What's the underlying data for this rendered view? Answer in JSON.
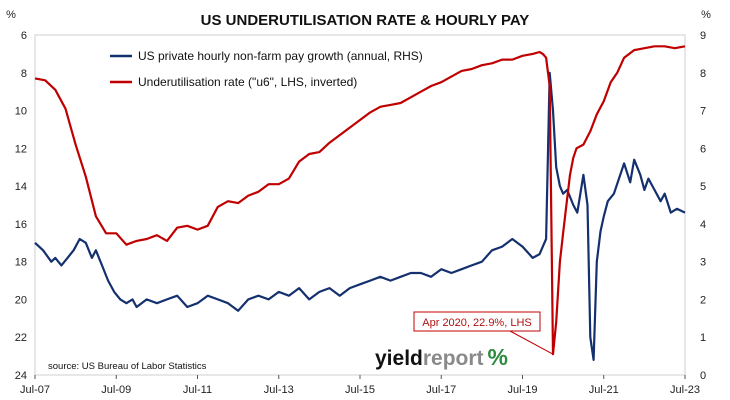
{
  "chart_data": {
    "type": "line",
    "title": "US UNDERUTILISATION RATE & HOURLY PAY",
    "left_axis": {
      "unit": "%",
      "inverted": true,
      "ylim": [
        6,
        24
      ],
      "ticks": [
        6,
        8,
        10,
        12,
        14,
        16,
        18,
        20,
        22,
        24
      ]
    },
    "right_axis": {
      "unit": "%",
      "ylim": [
        0,
        9
      ],
      "ticks": [
        0,
        1,
        2,
        3,
        4,
        5,
        6,
        7,
        8,
        9
      ]
    },
    "x_ticks": [
      {
        "label": "Jul-07",
        "x": 2007.5
      },
      {
        "label": "Jul-09",
        "x": 2009.5
      },
      {
        "label": "Jul-11",
        "x": 2011.5
      },
      {
        "label": "Jul-13",
        "x": 2013.5
      },
      {
        "label": "Jul-15",
        "x": 2015.5
      },
      {
        "label": "Jul-17",
        "x": 2017.5
      },
      {
        "label": "Jul-19",
        "x": 2019.5
      },
      {
        "label": "Jul-21",
        "x": 2021.5
      },
      {
        "label": "Jul-23",
        "x": 2023.5
      }
    ],
    "xlim": [
      2007.5,
      2023.5
    ],
    "grid": false,
    "legend_position": "top-left",
    "series": [
      {
        "name": "US private hourly non-farm pay growth (annual, RHS)",
        "axis": "right",
        "color": "#14306e",
        "x": [
          2007.5,
          2007.7,
          2007.9,
          2008.0,
          2008.15,
          2008.3,
          2008.45,
          2008.6,
          2008.75,
          2008.9,
          2009.0,
          2009.15,
          2009.3,
          2009.45,
          2009.6,
          2009.75,
          2009.9,
          2010.0,
          2010.25,
          2010.5,
          2010.75,
          2011.0,
          2011.25,
          2011.5,
          2011.75,
          2012.0,
          2012.25,
          2012.5,
          2012.75,
          2013.0,
          2013.25,
          2013.5,
          2013.75,
          2014.0,
          2014.25,
          2014.5,
          2014.75,
          2015.0,
          2015.25,
          2015.5,
          2015.75,
          2016.0,
          2016.25,
          2016.5,
          2016.75,
          2017.0,
          2017.25,
          2017.5,
          2017.75,
          2018.0,
          2018.25,
          2018.5,
          2018.75,
          2019.0,
          2019.25,
          2019.5,
          2019.75,
          2019.92,
          2020.0,
          2020.08,
          2020.17,
          2020.25,
          2020.33,
          2020.42,
          2020.5,
          2020.6,
          2020.75,
          2020.85,
          2021.0,
          2021.1,
          2021.17,
          2021.25,
          2021.33,
          2021.42,
          2021.5,
          2021.6,
          2021.75,
          2022.0,
          2022.15,
          2022.25,
          2022.4,
          2022.5,
          2022.6,
          2022.75,
          2022.9,
          2023.0,
          2023.15,
          2023.3,
          2023.5
        ],
        "values": [
          3.5,
          3.3,
          3.0,
          3.1,
          2.9,
          3.1,
          3.3,
          3.6,
          3.5,
          3.1,
          3.3,
          2.9,
          2.5,
          2.2,
          2.0,
          1.9,
          2.0,
          1.8,
          2.0,
          1.9,
          2.0,
          2.1,
          1.8,
          1.9,
          2.1,
          2.0,
          1.9,
          1.7,
          2.0,
          2.1,
          2.0,
          2.2,
          2.1,
          2.3,
          2.0,
          2.2,
          2.3,
          2.1,
          2.3,
          2.4,
          2.5,
          2.6,
          2.5,
          2.6,
          2.7,
          2.7,
          2.6,
          2.8,
          2.7,
          2.8,
          2.9,
          3.0,
          3.3,
          3.4,
          3.6,
          3.4,
          3.1,
          3.2,
          3.4,
          3.6,
          8.0,
          7.0,
          5.5,
          5.0,
          4.8,
          4.9,
          4.5,
          4.3,
          5.3,
          4.5,
          1.0,
          0.4,
          3.0,
          3.8,
          4.2,
          4.6,
          4.8,
          5.6,
          5.1,
          5.7,
          5.3,
          4.9,
          5.2,
          4.9,
          4.6,
          4.8,
          4.3,
          4.4,
          4.3
        ]
      },
      {
        "name": "Underutilisation rate (\"u6\", LHS, inverted)",
        "axis": "left",
        "color": "#c00000",
        "x": [
          2007.5,
          2007.75,
          2008.0,
          2008.25,
          2008.5,
          2008.75,
          2009.0,
          2009.25,
          2009.5,
          2009.75,
          2010.0,
          2010.25,
          2010.5,
          2010.75,
          2011.0,
          2011.25,
          2011.5,
          2011.75,
          2012.0,
          2012.25,
          2012.5,
          2012.75,
          2013.0,
          2013.25,
          2013.5,
          2013.75,
          2014.0,
          2014.25,
          2014.5,
          2014.75,
          2015.0,
          2015.25,
          2015.5,
          2015.75,
          2016.0,
          2016.25,
          2016.5,
          2016.75,
          2017.0,
          2017.25,
          2017.5,
          2017.75,
          2018.0,
          2018.25,
          2018.5,
          2018.75,
          2019.0,
          2019.25,
          2019.5,
          2019.75,
          2019.92,
          2020.0,
          2020.08,
          2020.17,
          2020.25,
          2020.33,
          2020.42,
          2020.5,
          2020.58,
          2020.67,
          2020.75,
          2020.83,
          2021.0,
          2021.17,
          2021.33,
          2021.5,
          2021.67,
          2021.83,
          2022.0,
          2022.25,
          2022.5,
          2022.75,
          2023.0,
          2023.25,
          2023.5
        ],
        "values": [
          8.3,
          8.4,
          8.9,
          9.9,
          11.8,
          13.5,
          15.6,
          16.5,
          16.5,
          17.1,
          16.9,
          16.8,
          16.6,
          16.9,
          16.2,
          16.1,
          16.3,
          16.1,
          15.1,
          14.8,
          14.9,
          14.5,
          14.3,
          13.9,
          13.9,
          13.6,
          12.7,
          12.3,
          12.2,
          11.7,
          11.3,
          10.9,
          10.5,
          10.1,
          9.8,
          9.7,
          9.6,
          9.3,
          9.0,
          8.7,
          8.5,
          8.2,
          7.9,
          7.8,
          7.6,
          7.5,
          7.3,
          7.3,
          7.1,
          7.0,
          6.9,
          7.0,
          7.2,
          8.7,
          22.9,
          21.2,
          18.0,
          16.5,
          15.0,
          13.4,
          12.5,
          12.0,
          11.8,
          11.1,
          10.2,
          9.5,
          8.5,
          8.0,
          7.2,
          6.8,
          6.7,
          6.6,
          6.6,
          6.7,
          6.6
        ]
      }
    ],
    "annotation": {
      "text": "Apr 2020, 22.9%, LHS",
      "x": 2020.25,
      "y": 22.9,
      "axis": "left"
    }
  },
  "source": "source: US Bureau of Labor Statistics",
  "logo": {
    "part1": "yield",
    "part2": "report",
    "part3": "%"
  }
}
